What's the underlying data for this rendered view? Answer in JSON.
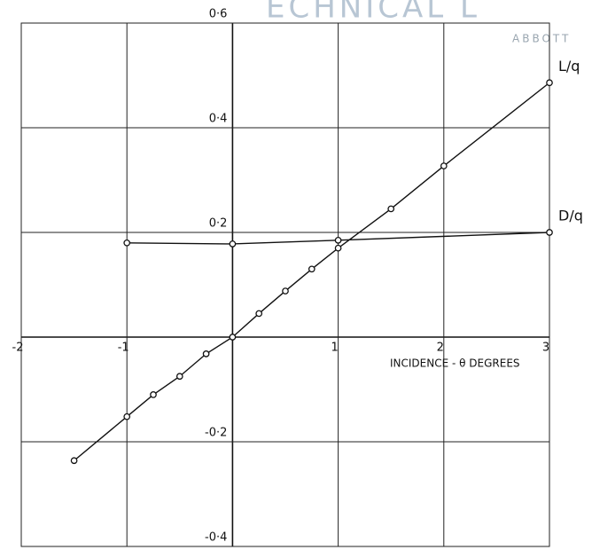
{
  "chart_data": {
    "type": "line",
    "watermark": [
      "ECHNICAL L",
      "ABBOTT"
    ],
    "xlabel": "INCIDENCE - θ DEGREES",
    "xlim": [
      -2,
      3
    ],
    "ylim": [
      -0.4,
      0.6
    ],
    "xticks": [
      -2,
      -1,
      1,
      2,
      3
    ],
    "yticks": [
      {
        "value": 0.6,
        "label": "0·6"
      },
      {
        "value": 0.4,
        "label": "0·4"
      },
      {
        "value": 0.2,
        "label": "0·2"
      },
      {
        "value": -0.2,
        "label": "-0·2"
      },
      {
        "value": -0.4,
        "label": "-0·4"
      }
    ],
    "grid": true,
    "series": [
      {
        "name": "L/q",
        "color": "#111111",
        "x": [
          -1.5,
          -1,
          -0.75,
          -0.5,
          -0.25,
          0,
          0.25,
          0.5,
          0.75,
          1,
          1.5,
          2,
          3
        ],
        "values": [
          -0.236,
          -0.152,
          -0.11,
          -0.075,
          -0.032,
          0,
          0.045,
          0.088,
          0.13,
          0.17,
          0.245,
          0.327,
          0.486
        ]
      },
      {
        "name": "D/q",
        "color": "#111111",
        "x": [
          -1,
          0,
          1,
          3
        ],
        "values": [
          0.18,
          0.178,
          0.185,
          0.2
        ]
      }
    ]
  }
}
